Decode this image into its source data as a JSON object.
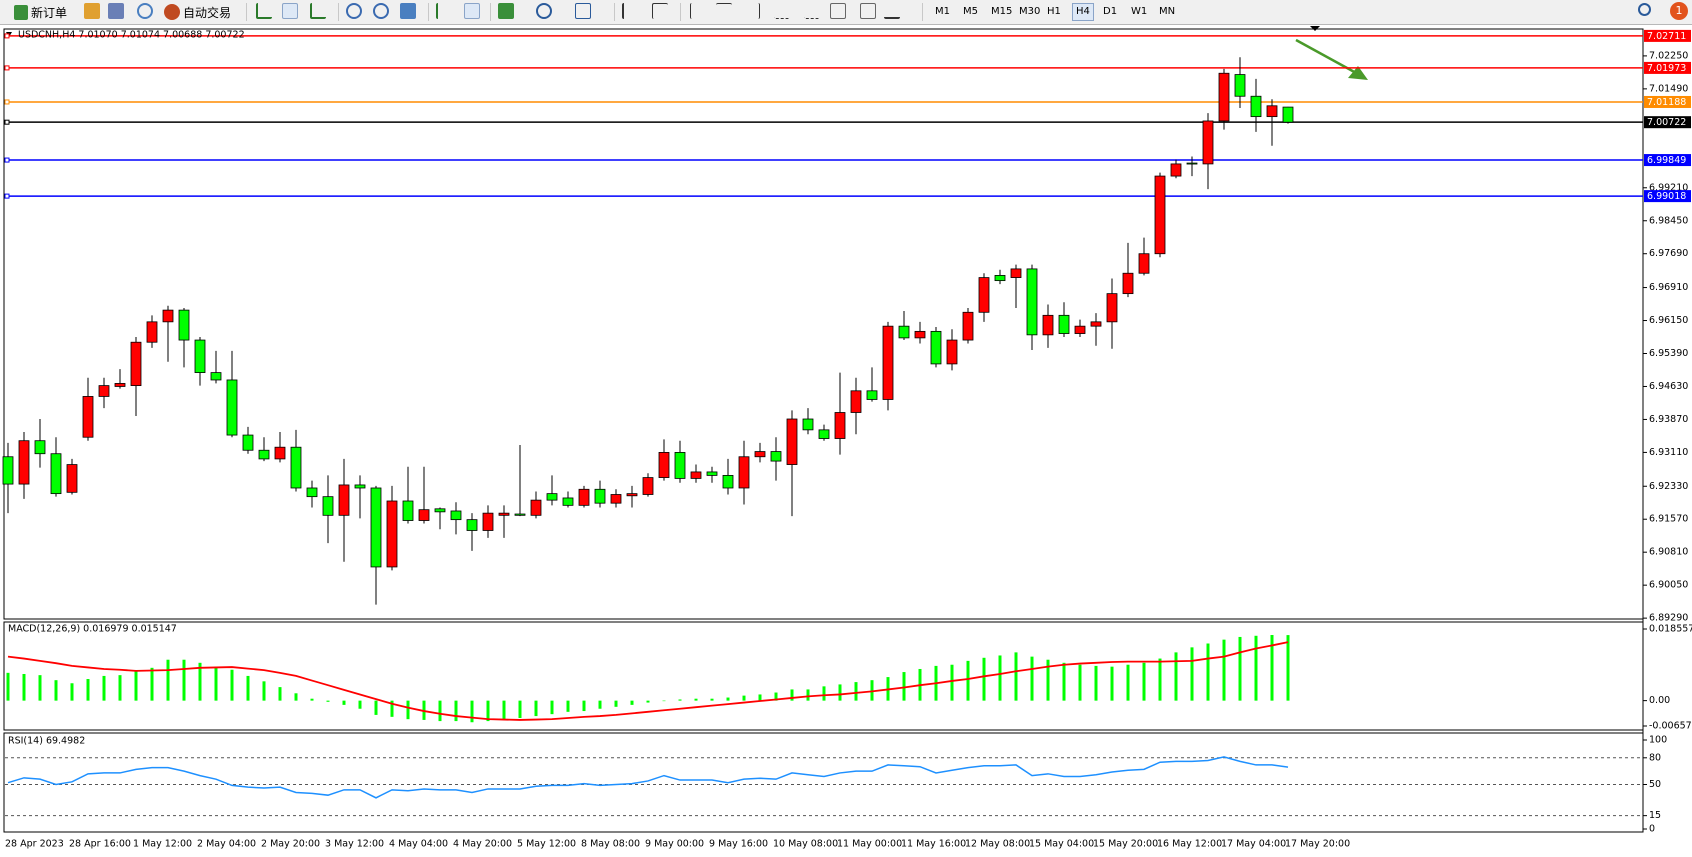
{
  "toolbar": {
    "new_order": "新订单",
    "auto_trading": "自动交易",
    "timeframes": [
      {
        "label": "M1"
      },
      {
        "label": "M5"
      },
      {
        "label": "M15"
      },
      {
        "label": "M30"
      },
      {
        "label": "H1"
      },
      {
        "label": "H4",
        "selected": true
      },
      {
        "label": "D1"
      },
      {
        "label": "W1"
      },
      {
        "label": "MN"
      }
    ],
    "notifications": "1"
  },
  "chart_data": [
    {
      "type": "candlestick",
      "title": "USDCNH,H4 7.01070 7.01074 7.00688 7.00722",
      "categories": [
        "28 Apr 2023",
        null,
        null,
        null,
        "28 Apr 16:00",
        null,
        null,
        null,
        "1 May 12:00",
        null,
        null,
        null,
        "2 May 04:00",
        null,
        null,
        null,
        "2 May 20:00",
        null,
        null,
        null,
        "3 May 12:00",
        null,
        null,
        null,
        "4 May 04:00",
        null,
        null,
        null,
        "4 May 20:00",
        null,
        null,
        null,
        "5 May 12:00",
        null,
        null,
        null,
        "8 May 08:00",
        null,
        null,
        null,
        "9 May 00:00",
        null,
        null,
        null,
        "9 May 16:00",
        null,
        null,
        null,
        "10 May 08:00",
        null,
        null,
        null,
        "11 May 00:00",
        null,
        null,
        null,
        "11 May 16:00",
        null,
        null,
        null,
        "12 May 08:00",
        null,
        null,
        null,
        "15 May 04:00",
        null,
        null,
        null,
        "15 May 20:00",
        null,
        null,
        null,
        "16 May 12:00",
        null,
        null,
        null,
        "17 May 04:00",
        null,
        null,
        null,
        "17 May 20:00"
      ],
      "open": [
        6.9301,
        6.9238,
        6.9338,
        6.9308,
        6.9219,
        6.9346,
        6.944,
        6.9463,
        6.9465,
        6.9565,
        6.9612,
        6.9639,
        6.957,
        6.9495,
        6.9478,
        6.9351,
        6.9316,
        6.9296,
        6.9323,
        6.9229,
        6.9209,
        6.9166,
        6.9236,
        6.9229,
        6.9047,
        6.9199,
        6.9154,
        6.9181,
        6.9176,
        6.9156,
        6.9131,
        6.9166,
        6.9169,
        6.9166,
        6.9216,
        6.9206,
        6.9189,
        6.9226,
        6.9194,
        6.9211,
        6.9214,
        6.9253,
        6.9311,
        6.9251,
        6.9266,
        6.9258,
        6.9229,
        6.9301,
        6.9313,
        6.9283,
        6.9388,
        6.9363,
        6.9343,
        6.9403,
        6.9453,
        6.9433,
        6.9602,
        6.9575,
        6.959,
        6.9515,
        6.957,
        6.9634,
        6.9719,
        6.9714,
        6.9734,
        6.9582,
        6.9627,
        6.9585,
        6.9602,
        6.9612,
        6.9677,
        6.9724,
        6.9769,
        6.9948,
        6.9978,
        6.9976,
        7.0075,
        7.0182,
        7.0132,
        7.0085,
        7.0107
      ],
      "high": [
        6.9333,
        6.9358,
        6.9388,
        6.9346,
        6.9296,
        6.9483,
        6.9483,
        6.9503,
        6.9577,
        6.9627,
        6.9649,
        6.9644,
        6.9577,
        6.9545,
        6.9545,
        6.937,
        6.9346,
        6.9358,
        6.9363,
        6.9246,
        6.9258,
        6.9296,
        6.9258,
        6.9234,
        6.9234,
        6.9278,
        6.9278,
        6.9184,
        6.9196,
        6.9171,
        6.9189,
        6.9189,
        6.9328,
        6.9221,
        6.9258,
        6.9221,
        6.9234,
        6.9246,
        6.9226,
        6.9234,
        6.9263,
        6.9341,
        6.9338,
        6.9283,
        6.9278,
        6.9296,
        6.9338,
        6.9333,
        6.9346,
        6.9408,
        6.9413,
        6.9375,
        6.9495,
        6.9483,
        6.9507,
        6.9612,
        6.9637,
        6.9612,
        6.96,
        6.9595,
        6.9644,
        6.9724,
        6.9732,
        6.9744,
        6.9744,
        6.9652,
        6.9657,
        6.9617,
        6.9632,
        6.9712,
        6.9794,
        6.9806,
        6.9956,
        6.9986,
        6.9993,
        7.0093,
        7.0195,
        7.0222,
        7.0172,
        7.0125,
        7.01074
      ],
      "low": [
        6.9171,
        6.9204,
        6.9276,
        6.9209,
        6.9214,
        6.9338,
        6.9413,
        6.9458,
        6.9395,
        6.9552,
        6.952,
        6.9507,
        6.9465,
        6.947,
        6.9346,
        6.9308,
        6.9291,
        6.9288,
        6.9221,
        6.9184,
        6.9102,
        6.9059,
        6.9159,
        6.896,
        6.9039,
        6.9147,
        6.9147,
        6.9134,
        6.9122,
        6.9084,
        6.9114,
        6.9114,
        6.9164,
        6.9159,
        6.9189,
        6.9184,
        6.9184,
        6.9184,
        6.9184,
        6.9184,
        6.9209,
        6.9246,
        6.9241,
        6.9241,
        6.9241,
        6.9214,
        6.9191,
        6.9288,
        6.9246,
        6.9164,
        6.9353,
        6.9338,
        6.9306,
        6.9353,
        6.9428,
        6.9408,
        6.957,
        6.9562,
        6.9507,
        6.95,
        6.9562,
        6.9612,
        6.9699,
        6.9644,
        6.9547,
        6.9552,
        6.9577,
        6.9577,
        6.9557,
        6.955,
        6.9669,
        6.9719,
        6.9761,
        6.9943,
        6.9948,
        6.9918,
        7.0055,
        7.0105,
        7.005,
        7.0018,
        7.00688
      ],
      "close": [
        6.9238,
        6.9338,
        6.9308,
        6.9216,
        6.9283,
        6.944,
        6.9465,
        6.947,
        6.9565,
        6.9612,
        6.9639,
        6.957,
        6.9495,
        6.9478,
        6.9351,
        6.9316,
        6.9296,
        6.9323,
        6.9229,
        6.9209,
        6.9166,
        6.9236,
        6.9229,
        6.9047,
        6.9199,
        6.9154,
        6.9179,
        6.9174,
        6.9156,
        6.9131,
        6.9171,
        6.9171,
        6.9166,
        6.9201,
        6.9201,
        6.9189,
        6.9226,
        6.9194,
        6.9214,
        6.9216,
        6.9253,
        6.9311,
        6.9251,
        6.9266,
        6.9258,
        6.9229,
        6.9301,
        6.9313,
        6.9291,
        6.9388,
        6.9363,
        6.9343,
        6.9403,
        6.9453,
        6.9433,
        6.9602,
        6.9575,
        6.959,
        6.9515,
        6.957,
        6.9634,
        6.9714,
        6.9707,
        6.9734,
        6.9582,
        6.9627,
        6.9585,
        6.9602,
        6.9612,
        6.9677,
        6.9724,
        6.9769,
        6.9948,
        6.9976,
        6.9976,
        7.0075,
        7.0185,
        7.0132,
        7.0085,
        7.011,
        7.00722
      ],
      "up_color": "#ff0000",
      "down_color": "#00ff00",
      "ylim": [
        6.8927,
        7.0287
      ],
      "yticks": [
        {
          "value": 6.8929,
          "label": "6.89290"
        },
        {
          "value": 6.9005,
          "label": "6.90050"
        },
        {
          "value": 6.9081,
          "label": "6.90810"
        },
        {
          "value": 6.9157,
          "label": "6.91570"
        },
        {
          "value": 6.9233,
          "label": "6.92330"
        },
        {
          "value": 6.9311,
          "label": "6.93110"
        },
        {
          "value": 6.9387,
          "label": "6.93870"
        },
        {
          "value": 6.9463,
          "label": "6.94630"
        },
        {
          "value": 6.9539,
          "label": "6.95390"
        },
        {
          "value": 6.9615,
          "label": "6.96150"
        },
        {
          "value": 6.9691,
          "label": "6.96910"
        },
        {
          "value": 6.9769,
          "label": "6.97690"
        },
        {
          "value": 6.9845,
          "label": "6.98450"
        },
        {
          "value": 6.9921,
          "label": "6.99210"
        },
        {
          "value": 7.0149,
          "label": "7.01490"
        },
        {
          "value": 7.0225,
          "label": "7.02250"
        }
      ],
      "levels": [
        {
          "value": 7.02711,
          "color": "#ff0000"
        },
        {
          "value": 7.01973,
          "color": "#ff0000"
        },
        {
          "value": 7.01188,
          "color": "#ff8c00"
        },
        {
          "value": 7.00722,
          "color": "#000000"
        },
        {
          "value": 6.99849,
          "color": "#0000ff"
        },
        {
          "value": 6.99018,
          "color": "#0000ff"
        }
      ]
    },
    {
      "type": "macd",
      "title": "MACD(12,26,9) 0.016979 0.015147",
      "series": [
        {
          "style": "bar",
          "color": "#00ff00",
          "values": [
            0.0072,
            0.0069,
            0.0066,
            0.0053,
            0.0045,
            0.0056,
            0.0064,
            0.0066,
            0.0077,
            0.0085,
            0.0106,
            0.0106,
            0.0098,
            0.0088,
            0.008,
            0.0064,
            0.005,
            0.0035,
            0.0019,
            0.0005,
            -0.0003,
            -0.0011,
            -0.0021,
            -0.0037,
            -0.0042,
            -0.0048,
            -0.005,
            -0.0053,
            -0.0053,
            -0.0056,
            -0.0053,
            -0.0048,
            -0.0045,
            -0.004,
            -0.0035,
            -0.0029,
            -0.0027,
            -0.0021,
            -0.0016,
            -0.0011,
            -0.0005,
            0.0,
            0.0003,
            0.0005,
            0.0005,
            0.0008,
            0.0013,
            0.0016,
            0.0021,
            0.0029,
            0.0029,
            0.0037,
            0.0042,
            0.0048,
            0.0053,
            0.0061,
            0.0074,
            0.0082,
            0.009,
            0.0093,
            0.0103,
            0.0111,
            0.0117,
            0.0125,
            0.0114,
            0.0106,
            0.0098,
            0.0093,
            0.009,
            0.0088,
            0.0093,
            0.0098,
            0.0109,
            0.0125,
            0.0138,
            0.0148,
            0.0158,
            0.0165,
            0.0168,
            0.017,
            0.016979
          ]
        },
        {
          "style": "line",
          "color": "#ff0000",
          "values": [
            0.0114,
            0.0109,
            0.0103,
            0.0097,
            0.009,
            0.0086,
            0.0082,
            0.008,
            0.0077,
            0.0078,
            0.0079,
            0.0082,
            0.0085,
            0.0086,
            0.0087,
            0.0083,
            0.0079,
            0.0072,
            0.0064,
            0.0052,
            0.004,
            0.0028,
            0.0016,
            0.0004,
            -0.0008,
            -0.0018,
            -0.0027,
            -0.0034,
            -0.004,
            -0.0044,
            -0.0048,
            -0.0049,
            -0.005,
            -0.0049,
            -0.0048,
            -0.0045,
            -0.0042,
            -0.004,
            -0.0037,
            -0.0033,
            -0.0029,
            -0.0025,
            -0.0021,
            -0.0017,
            -0.0013,
            -0.0009,
            -0.0005,
            -0.0001,
            0.0003,
            0.0007,
            0.0011,
            0.0014,
            0.0016,
            0.002,
            0.0024,
            0.0029,
            0.0034,
            0.004,
            0.0045,
            0.0051,
            0.0056,
            0.0063,
            0.0069,
            0.0076,
            0.0082,
            0.0088,
            0.0093,
            0.0096,
            0.0098,
            0.01,
            0.0101,
            0.0101,
            0.0101,
            0.0102,
            0.0103,
            0.0109,
            0.0114,
            0.0125,
            0.0135,
            0.0143,
            0.015147
          ]
        }
      ],
      "ylim": [
        -0.006572,
        0.018557
      ],
      "yticks": [
        -0.006572,
        {
          "value": 0,
          "label": "0.00"
        },
        0.018557
      ]
    },
    {
      "type": "line",
      "title": "RSI(14) 69.4982",
      "color": "#1e90ff",
      "values": [
        52,
        57.5,
        56,
        50,
        53,
        62,
        63,
        63,
        67,
        69,
        69,
        65,
        60,
        56,
        49,
        47,
        46,
        47,
        41,
        40,
        38,
        44,
        44,
        35,
        44,
        43,
        45,
        44,
        44,
        41,
        45,
        45,
        45,
        48,
        49,
        49,
        51,
        49,
        50,
        51,
        54,
        60,
        55,
        55,
        55,
        52,
        56,
        57,
        56,
        63,
        61,
        59,
        63,
        65,
        65,
        72,
        71,
        70,
        63,
        66,
        69,
        71,
        71,
        72,
        60,
        62,
        59,
        59,
        61,
        64,
        66,
        67,
        75,
        76,
        76,
        77,
        81,
        76,
        72,
        72,
        69.4982
      ],
      "ylim": [
        0,
        100
      ],
      "yticks": [
        0,
        15,
        50,
        80,
        100
      ]
    }
  ]
}
